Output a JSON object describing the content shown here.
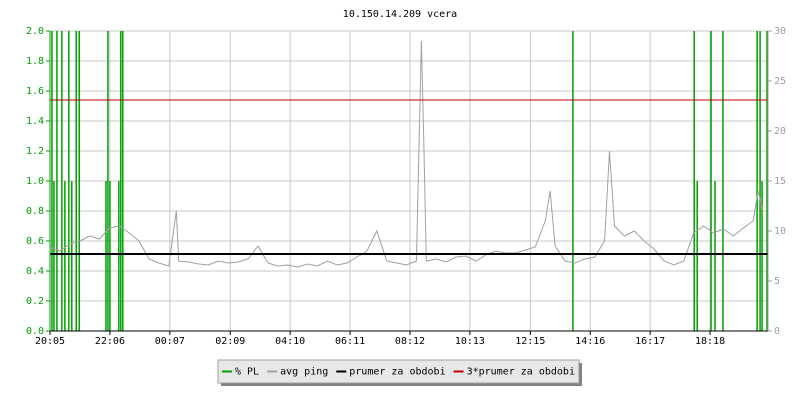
{
  "chart_data": {
    "type": "line",
    "title": "10.150.14.209 vcera",
    "xlim": [
      0,
      1450
    ],
    "xticks": [
      {
        "value": 0,
        "label": "20:05"
      },
      {
        "value": 121,
        "label": "22:06"
      },
      {
        "value": 242,
        "label": "00:07"
      },
      {
        "value": 364,
        "label": "02:09"
      },
      {
        "value": 485,
        "label": "04:10"
      },
      {
        "value": 606,
        "label": "06:11"
      },
      {
        "value": 727,
        "label": "08:12"
      },
      {
        "value": 848,
        "label": "10:13"
      },
      {
        "value": 970,
        "label": "12:15"
      },
      {
        "value": 1091,
        "label": "14:16"
      },
      {
        "value": 1212,
        "label": "16:17"
      },
      {
        "value": 1333,
        "label": "18:18"
      }
    ],
    "ylim": [
      0,
      2
    ],
    "yticks": [
      {
        "value": 0,
        "label": "0.0"
      },
      0.2,
      0.4,
      0.6,
      0.8,
      {
        "value": 1,
        "label": "1.0"
      },
      1.2,
      1.4,
      1.6,
      1.8,
      {
        "value": 2,
        "label": "2.0"
      }
    ],
    "y2lim": [
      0,
      30
    ],
    "y2ticks": [
      0,
      5,
      10,
      15,
      20,
      25,
      30
    ],
    "grid": true,
    "series": [
      {
        "name": "% PL",
        "color": "#00a000",
        "style": "impulse",
        "x": [
          4,
          8,
          14,
          24,
          30,
          38,
          44,
          53,
          59,
          113,
          117,
          121,
          139,
          143,
          147,
          1056,
          1301,
          1307,
          1335,
          1343,
          1359,
          1428,
          1434,
          1438,
          1448
        ],
        "values": [
          2,
          1,
          2,
          2,
          1,
          2,
          1,
          2,
          2,
          1,
          2,
          1,
          1,
          2,
          2,
          2,
          2,
          1,
          2,
          1,
          2,
          2,
          2,
          1,
          2
        ]
      },
      {
        "name": "avg ping",
        "color": "#a0a0a0",
        "style": "line",
        "axis": "y2",
        "x": [
          0,
          20,
          40,
          60,
          80,
          100,
          120,
          140,
          160,
          180,
          200,
          220,
          240,
          255,
          260,
          280,
          300,
          320,
          340,
          360,
          380,
          400,
          420,
          440,
          460,
          480,
          500,
          520,
          540,
          560,
          580,
          600,
          620,
          640,
          660,
          680,
          700,
          720,
          740,
          750,
          755,
          760,
          780,
          800,
          820,
          840,
          860,
          880,
          900,
          920,
          940,
          960,
          980,
          1000,
          1010,
          1020,
          1040,
          1060,
          1080,
          1100,
          1120,
          1130,
          1140,
          1160,
          1180,
          1200,
          1220,
          1240,
          1260,
          1280,
          1300,
          1320,
          1340,
          1360,
          1380,
          1400,
          1420,
          1430,
          1440
        ],
        "values": [
          8.4,
          8.0,
          8.7,
          9.0,
          9.5,
          9.2,
          10.3,
          10.5,
          9.8,
          9.0,
          7.2,
          6.8,
          6.5,
          12.0,
          7.0,
          6.9,
          6.7,
          6.6,
          7.0,
          6.8,
          6.9,
          7.2,
          8.5,
          6.8,
          6.5,
          6.6,
          6.4,
          6.7,
          6.5,
          7.0,
          6.6,
          6.8,
          7.4,
          8.0,
          10.0,
          7.0,
          6.8,
          6.6,
          7.0,
          29.0,
          18.5,
          7.0,
          7.2,
          6.9,
          7.4,
          7.5,
          7.0,
          7.6,
          8.0,
          7.8,
          7.8,
          8.1,
          8.4,
          11.0,
          14.0,
          8.5,
          7.0,
          6.8,
          7.2,
          7.4,
          9.0,
          18.0,
          10.5,
          9.5,
          10.0,
          9.0,
          8.2,
          7.0,
          6.6,
          7.0,
          9.8,
          10.5,
          9.8,
          10.2,
          9.5,
          10.3,
          11.0,
          14.0,
          12.0
        ]
      },
      {
        "name": "prumer za obdobi",
        "color": "#000000",
        "style": "hline",
        "axis": "y2",
        "value": 7.7
      },
      {
        "name": "3*prumer za obdobi",
        "color": "#c00000",
        "style": "hline",
        "axis": "y2",
        "value": 23.1
      }
    ]
  }
}
